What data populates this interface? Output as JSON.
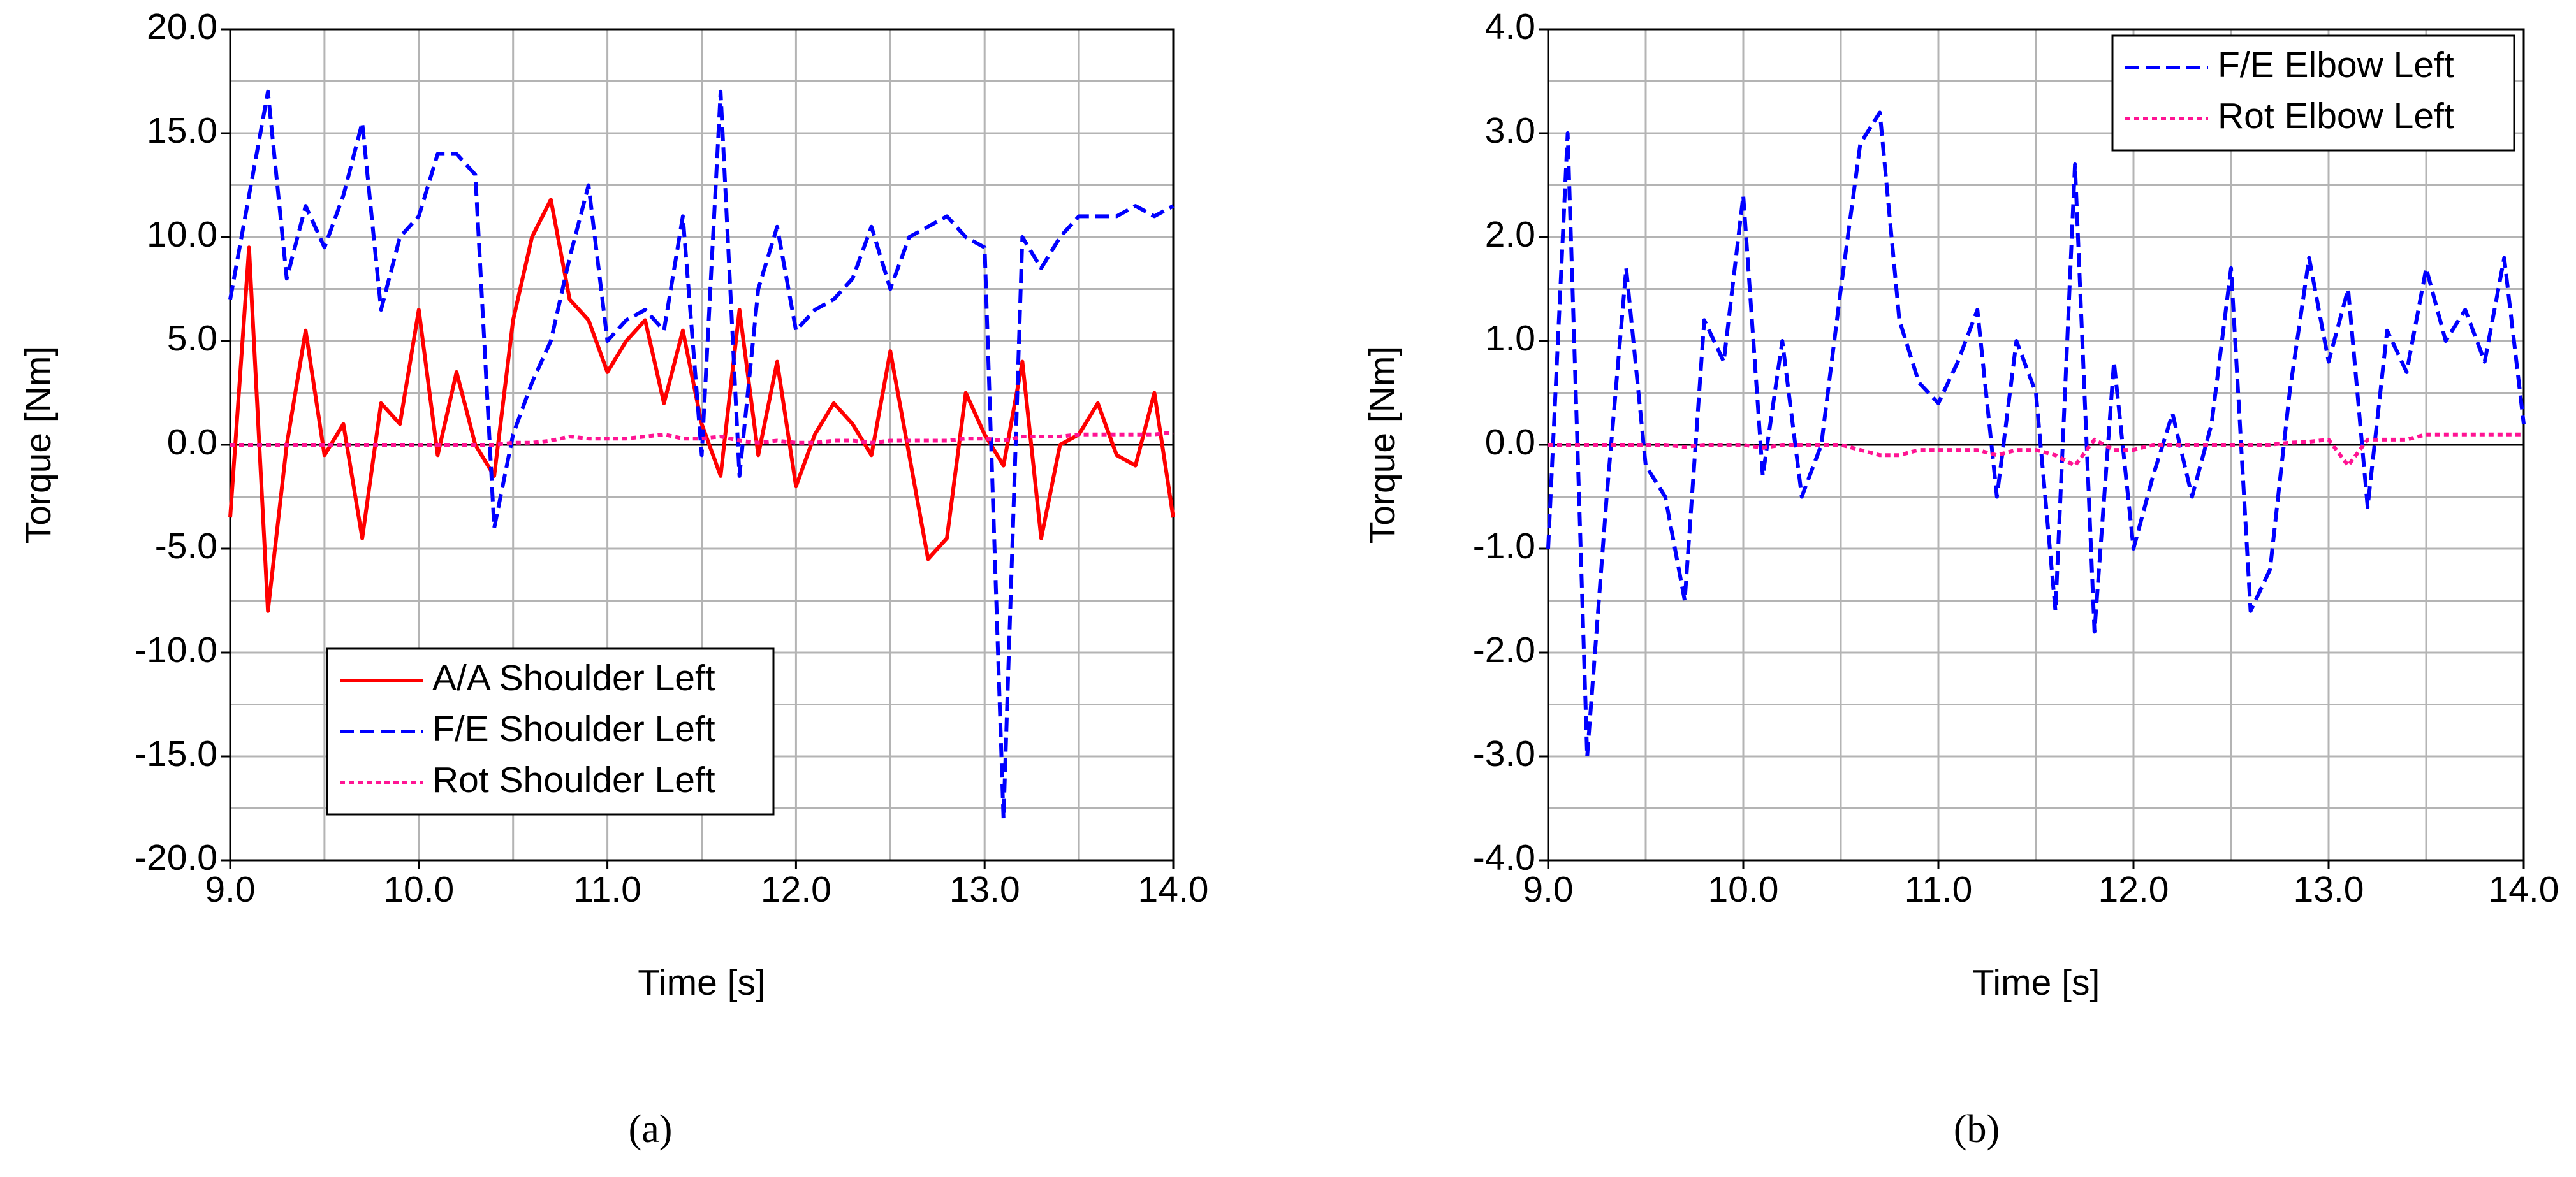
{
  "chart_data": [
    {
      "type": "line",
      "caption": "(a)",
      "x_label": "Time [s]",
      "y_label": "Torque [Nm]",
      "x": [
        9.0,
        9.1,
        9.2,
        9.3,
        9.4,
        9.5,
        9.6,
        9.7,
        9.8,
        9.9,
        10.0,
        10.1,
        10.2,
        10.3,
        10.4,
        10.5,
        10.6,
        10.7,
        10.8,
        10.9,
        11.0,
        11.1,
        11.2,
        11.3,
        11.4,
        11.5,
        11.6,
        11.7,
        11.8,
        11.9,
        12.0,
        12.1,
        12.2,
        12.3,
        12.4,
        12.5,
        12.6,
        12.7,
        12.8,
        12.9,
        13.0,
        13.1,
        13.2,
        13.3,
        13.4,
        13.5,
        13.6,
        13.7,
        13.8,
        13.9,
        14.0
      ],
      "series": [
        {
          "name": "A/A Shoulder Left",
          "color": "#ff0000",
          "dash": "solid",
          "values": [
            -3.5,
            9.5,
            -8,
            0,
            5.5,
            -0.5,
            1,
            -4.5,
            2,
            1,
            6.5,
            -0.5,
            3.5,
            0,
            -1.5,
            6,
            10,
            11.8,
            7,
            6,
            3.5,
            5,
            6,
            2,
            5.5,
            1,
            -1.5,
            6.5,
            -0.5,
            4,
            -2,
            0.5,
            2,
            1,
            -0.5,
            4.5,
            -0.5,
            -5.5,
            -4.5,
            2.5,
            0.5,
            -1,
            4,
            -4.5,
            0,
            0.5,
            2,
            -0.5,
            -1,
            2.5,
            -3.5
          ]
        },
        {
          "name": "F/E Shoulder Left",
          "color": "#0000ff",
          "dash": "dashed",
          "values": [
            7,
            12,
            17,
            8,
            11.5,
            9.5,
            12,
            15.5,
            6.5,
            10,
            11,
            14,
            14,
            13,
            -4,
            0.5,
            3,
            5,
            9,
            12.5,
            5,
            6,
            6.5,
            5.5,
            11,
            -0.5,
            17,
            -1.5,
            7.5,
            10.5,
            5.5,
            6.5,
            7,
            8,
            10.5,
            7.5,
            10,
            10.5,
            11,
            10,
            9.5,
            -18,
            10,
            8.5,
            10,
            11,
            11,
            11,
            11.5,
            11,
            11.5
          ]
        },
        {
          "name": "Rot Shoulder Left",
          "color": "#ff1493",
          "dash": "dotted",
          "values": [
            0,
            0,
            0,
            0,
            0,
            0,
            0,
            0,
            0,
            0,
            0,
            0,
            0,
            0,
            0,
            0.1,
            0.1,
            0.2,
            0.4,
            0.3,
            0.3,
            0.3,
            0.4,
            0.5,
            0.3,
            0.3,
            0.4,
            0.2,
            0.1,
            0.2,
            0.1,
            0.1,
            0.2,
            0.2,
            0.1,
            0.2,
            0.2,
            0.2,
            0.2,
            0.3,
            0.3,
            0.2,
            0.4,
            0.4,
            0.4,
            0.5,
            0.5,
            0.5,
            0.5,
            0.5,
            0.6
          ]
        }
      ],
      "xlim": [
        9,
        14
      ],
      "xticks": [
        {
          "value": 9,
          "label": "9.0"
        },
        {
          "value": 10,
          "label": "10.0"
        },
        {
          "value": 11,
          "label": "11.0"
        },
        {
          "value": 12,
          "label": "12.0"
        },
        {
          "value": 13,
          "label": "13.0"
        },
        {
          "value": 14,
          "label": "14.0"
        }
      ],
      "ylim": [
        -20,
        20
      ],
      "yticks": [
        {
          "value": -20,
          "label": "-20.0"
        },
        {
          "value": -15,
          "label": "-15.0"
        },
        {
          "value": -10,
          "label": "-10.0"
        },
        {
          "value": -5,
          "label": "-5.0"
        },
        {
          "value": 0,
          "label": "0.0"
        },
        {
          "value": 5,
          "label": "5.0"
        },
        {
          "value": 10,
          "label": "10.0"
        },
        {
          "value": 15,
          "label": "15.0"
        },
        {
          "value": 20,
          "label": "20.0"
        }
      ],
      "grid": true,
      "legend": "lower left"
    },
    {
      "type": "line",
      "caption": "(b)",
      "x_label": "Time [s]",
      "y_label": "Torque [Nm]",
      "x": [
        9.0,
        9.1,
        9.2,
        9.3,
        9.4,
        9.5,
        9.6,
        9.7,
        9.8,
        9.9,
        10.0,
        10.1,
        10.2,
        10.3,
        10.4,
        10.5,
        10.6,
        10.7,
        10.8,
        10.9,
        11.0,
        11.1,
        11.2,
        11.3,
        11.4,
        11.5,
        11.6,
        11.7,
        11.8,
        11.9,
        12.0,
        12.1,
        12.2,
        12.3,
        12.4,
        12.5,
        12.6,
        12.7,
        12.8,
        12.9,
        13.0,
        13.1,
        13.2,
        13.3,
        13.4,
        13.5,
        13.6,
        13.7,
        13.8,
        13.9,
        14.0
      ],
      "series": [
        {
          "name": "F/E Elbow Left",
          "color": "#0000ff",
          "dash": "dashed",
          "values": [
            -1,
            3,
            -3,
            -0.5,
            1.7,
            -0.2,
            -0.5,
            -1.5,
            1.2,
            0.8,
            2.4,
            -0.3,
            1,
            -0.5,
            0,
            1.5,
            2.9,
            3.2,
            1.2,
            0.6,
            0.4,
            0.8,
            1.3,
            -0.5,
            1,
            0.5,
            -1.6,
            2.7,
            -1.8,
            0.8,
            -1,
            -0.3,
            0.3,
            -0.5,
            0.2,
            1.7,
            -1.6,
            -1.2,
            0.5,
            1.8,
            0.8,
            1.5,
            -0.6,
            1.1,
            0.7,
            1.7,
            1,
            1.3,
            0.8,
            1.8,
            0.2
          ]
        },
        {
          "name": "Rot Elbow Left",
          "color": "#ff1493",
          "dash": "dotted",
          "values": [
            0,
            0,
            0,
            0,
            0,
            0,
            0,
            -0.02,
            0,
            0,
            0,
            -0.03,
            0,
            0,
            0,
            0,
            -0.05,
            -0.1,
            -0.1,
            -0.05,
            -0.05,
            -0.05,
            -0.05,
            -0.1,
            -0.05,
            -0.05,
            -0.1,
            -0.2,
            0.05,
            -0.05,
            -0.05,
            0,
            0,
            0,
            0,
            0,
            0,
            0,
            0.02,
            0.03,
            0.05,
            -0.2,
            0.05,
            0.05,
            0.05,
            0.1,
            0.1,
            0.1,
            0.1,
            0.1,
            0.1
          ]
        }
      ],
      "xlim": [
        9,
        14
      ],
      "xticks": [
        {
          "value": 9,
          "label": "9.0"
        },
        {
          "value": 10,
          "label": "10.0"
        },
        {
          "value": 11,
          "label": "11.0"
        },
        {
          "value": 12,
          "label": "12.0"
        },
        {
          "value": 13,
          "label": "13.0"
        },
        {
          "value": 14,
          "label": "14.0"
        }
      ],
      "ylim": [
        -4,
        4
      ],
      "yticks": [
        {
          "value": -4,
          "label": "-4.0"
        },
        {
          "value": -3,
          "label": "-3.0"
        },
        {
          "value": -2,
          "label": "-2.0"
        },
        {
          "value": -1,
          "label": "-1.0"
        },
        {
          "value": 0,
          "label": "0.0"
        },
        {
          "value": 1,
          "label": "1.0"
        },
        {
          "value": 2,
          "label": "2.0"
        },
        {
          "value": 3,
          "label": "3.0"
        },
        {
          "value": 4,
          "label": "4.0"
        }
      ],
      "grid": true,
      "legend": "upper right"
    }
  ]
}
